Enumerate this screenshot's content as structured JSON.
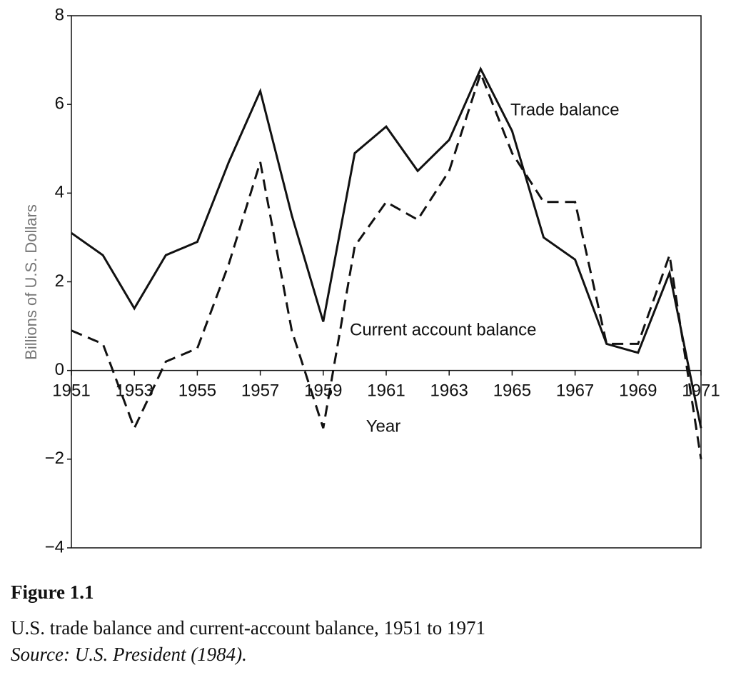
{
  "chart_data": {
    "type": "line",
    "y_label": "Billions of U.S. Dollars",
    "x_label": "Year",
    "x": [
      1951,
      1952,
      1953,
      1954,
      1955,
      1956,
      1957,
      1958,
      1959,
      1960,
      1961,
      1962,
      1963,
      1964,
      1965,
      1966,
      1967,
      1968,
      1969,
      1970,
      1971
    ],
    "series": [
      {
        "name": "Trade balance",
        "color": "#111111",
        "dash": "solid",
        "values": [
          3.1,
          2.6,
          1.4,
          2.6,
          2.9,
          4.7,
          6.3,
          3.5,
          1.1,
          4.9,
          5.5,
          4.5,
          5.2,
          6.8,
          5.4,
          3.0,
          2.5,
          0.6,
          0.4,
          2.2,
          -1.3
        ]
      },
      {
        "name": "Current account balance",
        "color": "#111111",
        "dash": "dashed",
        "values": [
          0.9,
          0.6,
          -1.3,
          0.2,
          0.5,
          2.4,
          4.7,
          0.9,
          -1.3,
          2.8,
          3.8,
          3.4,
          4.5,
          6.7,
          4.9,
          3.8,
          3.8,
          0.6,
          0.6,
          2.6,
          -2.0
        ]
      }
    ],
    "xlim": [
      1951,
      1971
    ],
    "xticks": [
      1951,
      1953,
      1955,
      1957,
      1959,
      1961,
      1963,
      1965,
      1967,
      1969,
      1971
    ],
    "ylim": [
      -4,
      8
    ],
    "yticks": [
      {
        "value": -4,
        "label": "−4"
      },
      {
        "value": -2,
        "label": "−2"
      },
      0,
      2,
      4,
      6,
      8
    ],
    "caption": {
      "figure": "Figure 1.1",
      "text": "U.S. trade balance and current-account balance, 1951 to 1971",
      "source": "Source: U.S. President (1984)."
    }
  }
}
